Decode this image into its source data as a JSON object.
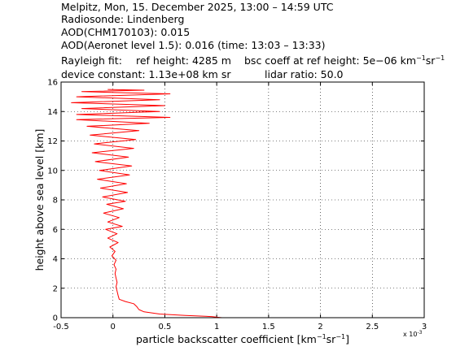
{
  "header": {
    "line1": "Melpitz, Mon, 15. December 2025, 13:00 – 14:59 UTC",
    "line2": "Radiosonde: Lindenberg",
    "line3": "AOD(CHM170103): 0.015",
    "line4": "AOD(Aeronet level 1.5): 0.016   (time: 13:03 – 13:33)",
    "rayleigh_label": "Rayleigh fit:",
    "ref_height": "ref height: 4285 m",
    "bsc_coeff_prefix": "bsc coeff at ref height: 5e−06 km",
    "device_constant": "device constant: 1.13e+08 km sr",
    "lidar_ratio": "lidar ratio: 50.0"
  },
  "chart_data": {
    "type": "line",
    "xlabel_prefix": "particle backscatter coefficient [km",
    "xlabel_mid": "sr",
    "xlabel_suffix": "]",
    "ylabel": "height above sea level [km]",
    "x_multiplier": "x 10",
    "x_multiplier_exp": "-3",
    "xlim": [
      -0.5,
      3
    ],
    "ylim": [
      0,
      16
    ],
    "x_ticks": [
      -0.5,
      0,
      0.5,
      1,
      1.5,
      2,
      2.5,
      3
    ],
    "x_tick_labels": [
      "-0.5",
      "0",
      "0.5",
      "1",
      "1.5",
      "2",
      "2.5",
      "3"
    ],
    "y_ticks": [
      0,
      2,
      4,
      6,
      8,
      10,
      12,
      14,
      16
    ],
    "y_tick_labels": [
      "0",
      "2",
      "4",
      "6",
      "8",
      "10",
      "12",
      "14",
      "16"
    ],
    "grid": true,
    "series": [
      {
        "color": "#ff0000",
        "points": [
          [
            1.05,
            0.0
          ],
          [
            0.95,
            0.08
          ],
          [
            0.7,
            0.15
          ],
          [
            0.45,
            0.25
          ],
          [
            0.3,
            0.4
          ],
          [
            0.25,
            0.55
          ],
          [
            0.23,
            0.75
          ],
          [
            0.2,
            0.95
          ],
          [
            0.12,
            1.1
          ],
          [
            0.06,
            1.25
          ],
          [
            0.05,
            1.5
          ],
          [
            0.04,
            1.8
          ],
          [
            0.03,
            2.1
          ],
          [
            0.04,
            2.4
          ],
          [
            0.03,
            2.7
          ],
          [
            0.02,
            3.0
          ],
          [
            0.03,
            3.3
          ],
          [
            0.01,
            3.6
          ],
          [
            0.03,
            3.9
          ],
          [
            -0.01,
            4.2
          ],
          [
            0.02,
            4.5
          ],
          [
            -0.03,
            4.8
          ],
          [
            0.05,
            5.1
          ],
          [
            -0.05,
            5.4
          ],
          [
            0.04,
            5.7
          ],
          [
            -0.07,
            6.0
          ],
          [
            0.09,
            6.2
          ],
          [
            -0.05,
            6.5
          ],
          [
            0.06,
            6.8
          ],
          [
            -0.09,
            7.1
          ],
          [
            0.1,
            7.4
          ],
          [
            -0.06,
            7.7
          ],
          [
            0.12,
            7.9
          ],
          [
            -0.1,
            8.2
          ],
          [
            0.14,
            8.5
          ],
          [
            -0.12,
            8.8
          ],
          [
            0.13,
            9.1
          ],
          [
            -0.15,
            9.4
          ],
          [
            0.16,
            9.7
          ],
          [
            -0.13,
            10.0
          ],
          [
            0.18,
            10.3
          ],
          [
            -0.17,
            10.6
          ],
          [
            0.15,
            10.9
          ],
          [
            -0.2,
            11.2
          ],
          [
            0.2,
            11.5
          ],
          [
            -0.18,
            11.8
          ],
          [
            0.22,
            12.1
          ],
          [
            -0.22,
            12.4
          ],
          [
            0.25,
            12.7
          ],
          [
            -0.25,
            13.0
          ],
          [
            0.35,
            13.2
          ],
          [
            -0.35,
            13.45
          ],
          [
            0.55,
            13.6
          ],
          [
            -0.35,
            13.8
          ],
          [
            0.45,
            14.0
          ],
          [
            -0.3,
            14.2
          ],
          [
            0.5,
            14.4
          ],
          [
            -0.4,
            14.6
          ],
          [
            0.45,
            14.8
          ],
          [
            -0.35,
            15.0
          ],
          [
            0.55,
            15.2
          ],
          [
            -0.3,
            15.35
          ],
          [
            0.3,
            15.45
          ],
          [
            -0.05,
            15.5
          ]
        ]
      }
    ]
  }
}
